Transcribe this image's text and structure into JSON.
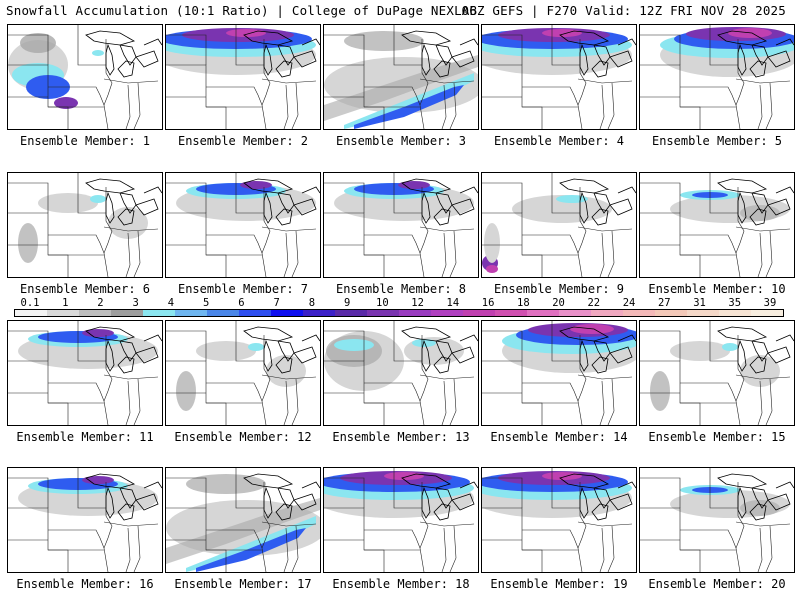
{
  "header": {
    "left_title": "Snowfall Accumulation (10:1 Ratio) | College of DuPage NEXLAB",
    "right_title": "06Z GEFS | F270 Valid: 12Z FRI NOV 28 2025"
  },
  "panels": [
    {
      "label": "Ensemble Member: 1",
      "pattern": "sw_band"
    },
    {
      "label": "Ensemble Member: 2",
      "pattern": "north_heavy"
    },
    {
      "label": "Ensemble Member: 3",
      "pattern": "diag_band"
    },
    {
      "label": "Ensemble Member: 4",
      "pattern": "north_heavy"
    },
    {
      "label": "Ensemble Member: 5",
      "pattern": "north_heavy_east"
    },
    {
      "label": "Ensemble Member: 6",
      "pattern": "scattered_light"
    },
    {
      "label": "Ensemble Member: 7",
      "pattern": "north_mid"
    },
    {
      "label": "Ensemble Member: 8",
      "pattern": "north_mid"
    },
    {
      "label": "Ensemble Member: 9",
      "pattern": "light_sw"
    },
    {
      "label": "Ensemble Member: 10",
      "pattern": "north_light"
    },
    {
      "label": "Ensemble Member: 11",
      "pattern": "north_mid"
    },
    {
      "label": "Ensemble Member: 12",
      "pattern": "scattered_light"
    },
    {
      "label": "Ensemble Member: 13",
      "pattern": "west_gray"
    },
    {
      "label": "Ensemble Member: 14",
      "pattern": "north_heavy_east"
    },
    {
      "label": "Ensemble Member: 15",
      "pattern": "scattered_light"
    },
    {
      "label": "Ensemble Member: 16",
      "pattern": "north_mid"
    },
    {
      "label": "Ensemble Member: 17",
      "pattern": "diag_band"
    },
    {
      "label": "Ensemble Member: 18",
      "pattern": "north_heavy"
    },
    {
      "label": "Ensemble Member: 19",
      "pattern": "north_heavy"
    },
    {
      "label": "Ensemble Member: 20",
      "pattern": "north_light"
    }
  ],
  "colorbar": {
    "colors": [
      "#f4f4f4",
      "#d9d9d9",
      "#bdbdbd",
      "#9e9e9e",
      "#8be6f0",
      "#6fb6f0",
      "#4a86e8",
      "#2f4ff0",
      "#1010f0",
      "#3c20c8",
      "#5a2aa8",
      "#7a34b0",
      "#9a3cc0",
      "#b040c0",
      "#c040b0",
      "#d050b0",
      "#e070c0",
      "#e890c8",
      "#f0a8c0",
      "#f3b8b8",
      "#f3c8b8",
      "#f5d8c8",
      "#f7e4d4",
      "#f8eee0"
    ],
    "ticks": [
      "0.1",
      "1",
      "2",
      "3",
      "4",
      "5",
      "6",
      "7",
      "8",
      "9",
      "10",
      "12",
      "14",
      "16",
      "18",
      "20",
      "22",
      "24",
      "27",
      "31",
      "35",
      "39"
    ]
  },
  "palette": {
    "gray_light": "#d6d6d6",
    "gray_dark": "#a8a8a8",
    "cyan": "#8be6f0",
    "blue": "#2f5cf0",
    "purple": "#7a34b0",
    "magenta": "#c040b0"
  }
}
